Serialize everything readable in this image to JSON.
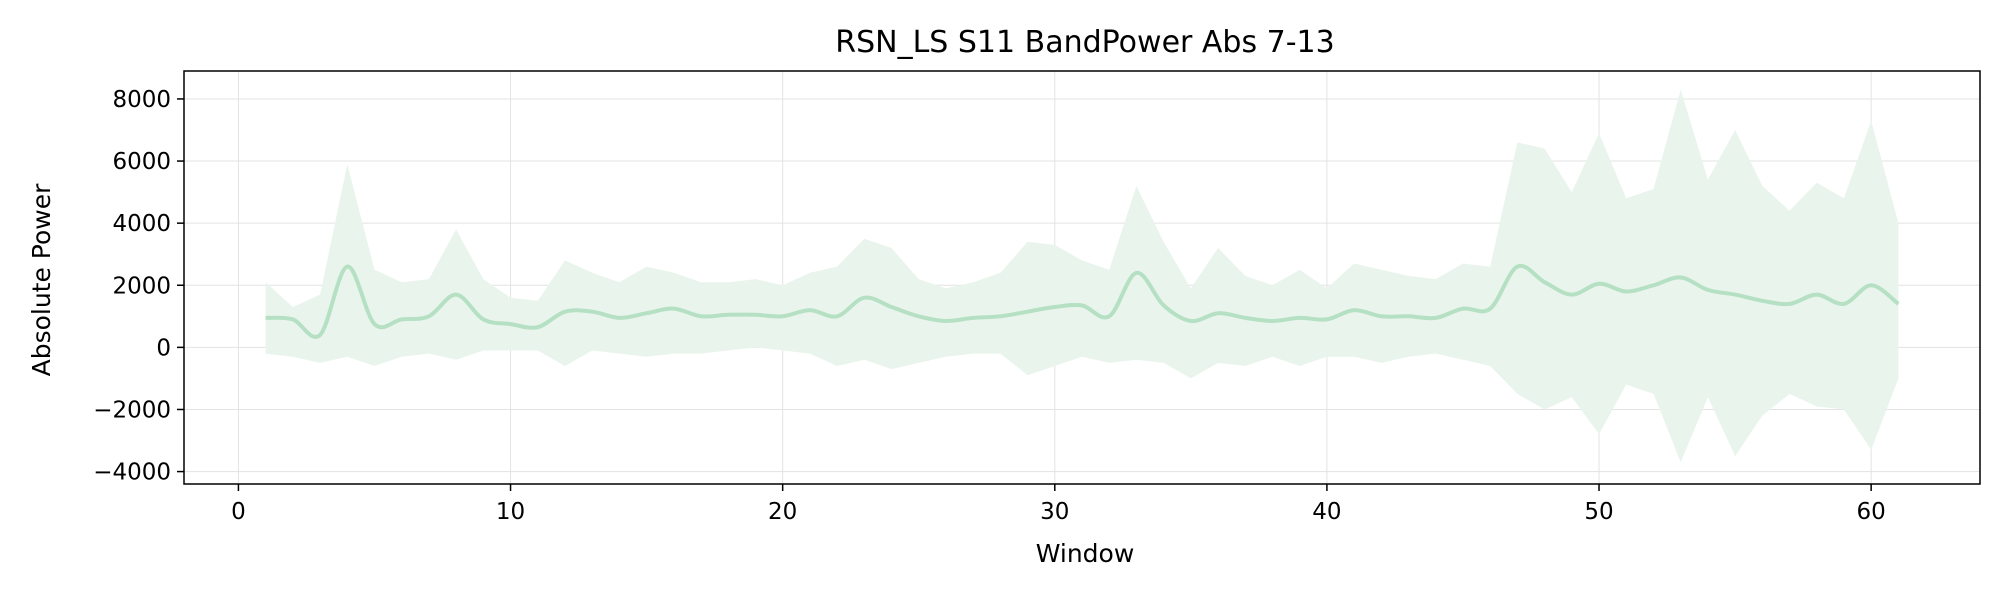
{
  "chart_data": {
    "type": "area",
    "title": "RSN_LS S11 BandPower Abs 7-13",
    "xlabel": "Window",
    "ylabel": "Absolute Power",
    "xlim": [
      -2,
      64
    ],
    "ylim": [
      -4400,
      8900
    ],
    "x_ticks": [
      0,
      10,
      20,
      30,
      40,
      50,
      60
    ],
    "y_ticks": [
      -4000,
      -2000,
      0,
      2000,
      4000,
      6000,
      8000
    ],
    "x_tick_labels": [
      "0",
      "10",
      "20",
      "30",
      "40",
      "50",
      "60"
    ],
    "y_tick_labels": [
      "−4000",
      "−2000",
      "0",
      "2000",
      "4000",
      "6000",
      "8000"
    ],
    "grid": true,
    "colors": {
      "line": "#b5e0c3",
      "band": "#e9f5ec",
      "grid": "#e3e3e3",
      "axis": "#000000"
    },
    "series": [
      {
        "x": [
          1,
          2,
          3,
          4,
          5,
          6,
          7,
          8,
          9,
          10,
          11,
          12,
          13,
          14,
          15,
          16,
          17,
          18,
          19,
          20,
          21,
          22,
          23,
          24,
          25,
          26,
          27,
          28,
          29,
          30,
          31,
          32,
          33,
          34,
          35,
          36,
          37,
          38,
          39,
          40,
          41,
          42,
          43,
          44,
          45,
          46,
          47,
          48,
          49,
          50,
          51,
          52,
          53,
          54,
          55,
          56,
          57,
          58,
          59,
          60,
          61
        ],
        "mean": [
          950,
          900,
          400,
          2600,
          750,
          900,
          1000,
          1700,
          900,
          750,
          650,
          1150,
          1150,
          950,
          1100,
          1250,
          1000,
          1050,
          1050,
          1000,
          1200,
          1000,
          1600,
          1300,
          1000,
          850,
          950,
          1000,
          1150,
          1300,
          1350,
          1000,
          2400,
          1350,
          850,
          1100,
          950,
          850,
          950,
          900,
          1200,
          1000,
          1000,
          950,
          1250,
          1250,
          2600,
          2100,
          1700,
          2050,
          1800,
          2000,
          2250,
          1850,
          1700,
          1500,
          1400,
          1700,
          1400,
          2000,
          1400
        ],
        "upper": [
          2100,
          1300,
          1700,
          5900,
          2500,
          2100,
          2200,
          3800,
          2200,
          1600,
          1500,
          2800,
          2400,
          2100,
          2600,
          2400,
          2100,
          2100,
          2200,
          2000,
          2400,
          2600,
          3500,
          3200,
          2200,
          1900,
          2100,
          2400,
          3400,
          3300,
          2800,
          2500,
          5200,
          3400,
          1900,
          3200,
          2300,
          2000,
          2500,
          1900,
          2700,
          2500,
          2300,
          2200,
          2700,
          2600,
          6600,
          6400,
          5000,
          6900,
          4800,
          5100,
          8300,
          5400,
          7000,
          5200,
          4400,
          5300,
          4800,
          7300,
          4000
        ],
        "lower": [
          -200,
          -300,
          -500,
          -300,
          -600,
          -300,
          -200,
          -400,
          -100,
          -100,
          -100,
          -600,
          -100,
          -200,
          -300,
          -200,
          -200,
          -100,
          0,
          -100,
          -200,
          -600,
          -400,
          -700,
          -500,
          -300,
          -200,
          -200,
          -900,
          -600,
          -300,
          -500,
          -400,
          -500,
          -1000,
          -500,
          -600,
          -300,
          -600,
          -300,
          -300,
          -500,
          -300,
          -200,
          -400,
          -600,
          -1500,
          -2000,
          -1600,
          -2800,
          -1200,
          -1500,
          -3700,
          -1600,
          -3500,
          -2200,
          -1500,
          -1900,
          -2000,
          -3300,
          -1000
        ]
      }
    ]
  }
}
